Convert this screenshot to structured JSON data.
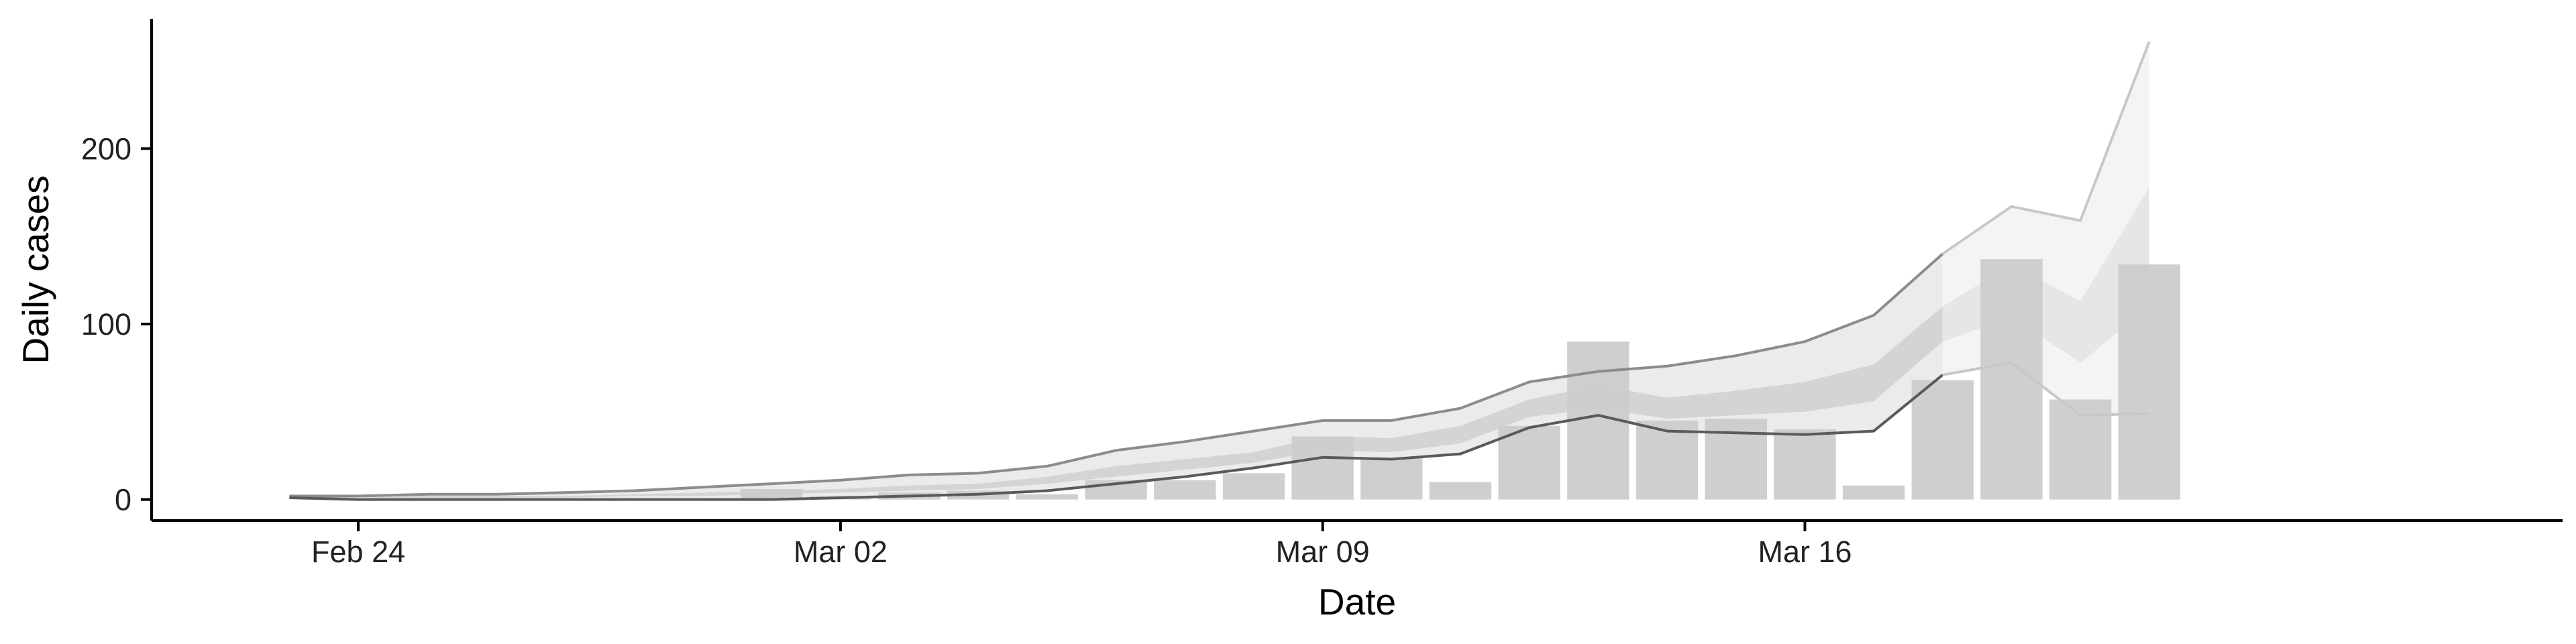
{
  "chart_data": {
    "type": "bar",
    "title": "",
    "xlabel": "Date",
    "ylabel": "Daily cases",
    "x_ticks": [
      "Feb 24",
      "Mar 02",
      "Mar 09",
      "Mar 16"
    ],
    "x_tick_dates": [
      "2020-02-24",
      "2020-03-02",
      "2020-03-09",
      "2020-03-16"
    ],
    "y_ticks": [
      0,
      100,
      200
    ],
    "xlim": [
      "2020-02-21",
      "2020-03-27"
    ],
    "ylim": [
      -12,
      274
    ],
    "grid": false,
    "legend": "none",
    "colors": {
      "bars": "#cccccc",
      "band_outer_fit": "#ebebeb",
      "band_inner_fit": "#d4d4d4",
      "band_outer_forecast": "#f4f4f4",
      "band_inner_forecast": "#e6e6e6",
      "upper_line": "#8c8c8c",
      "lower_line": "#5a5a5a",
      "upper_line_forecast": "#c8c8c8"
    },
    "cases": {
      "dates": [
        "2020-03-01",
        "2020-03-02",
        "2020-03-03",
        "2020-03-04",
        "2020-03-05",
        "2020-03-06",
        "2020-03-07",
        "2020-03-08",
        "2020-03-09",
        "2020-03-10",
        "2020-03-11",
        "2020-03-12",
        "2020-03-13",
        "2020-03-14",
        "2020-03-15",
        "2020-03-16",
        "2020-03-17",
        "2020-03-18",
        "2020-03-19",
        "2020-03-20",
        "2020-03-21"
      ],
      "values": [
        6,
        2,
        4,
        5,
        3,
        11,
        11,
        15,
        36,
        24,
        10,
        42,
        90,
        45,
        46,
        40,
        8,
        68,
        137,
        57,
        134
      ]
    },
    "ribbon_dates": [
      "2020-02-23",
      "2020-02-24",
      "2020-02-25",
      "2020-02-26",
      "2020-02-27",
      "2020-02-28",
      "2020-02-29",
      "2020-03-01",
      "2020-03-02",
      "2020-03-03",
      "2020-03-04",
      "2020-03-05",
      "2020-03-06",
      "2020-03-07",
      "2020-03-08",
      "2020-03-09",
      "2020-03-10",
      "2020-03-11",
      "2020-03-12",
      "2020-03-13",
      "2020-03-14",
      "2020-03-15",
      "2020-03-16",
      "2020-03-17",
      "2020-03-18",
      "2020-03-19",
      "2020-03-20",
      "2020-03-21"
    ],
    "outer_upper": [
      2,
      2,
      3,
      3,
      4,
      5,
      7,
      9,
      11,
      14,
      15,
      19,
      28,
      33,
      39,
      45,
      45,
      52,
      67,
      73,
      76,
      82,
      90,
      105,
      140,
      167,
      159,
      261
    ],
    "outer_lower": [
      1,
      0,
      0,
      0,
      0,
      0,
      0,
      0,
      1,
      2,
      3,
      5,
      9,
      13,
      18,
      24,
      23,
      26,
      41,
      48,
      39,
      38,
      37,
      39,
      71,
      78,
      48,
      49
    ],
    "inner_upper": [
      2,
      1,
      2,
      2,
      2,
      3,
      4,
      5,
      6,
      8,
      9,
      13,
      19,
      23,
      27,
      36,
      35,
      42,
      57,
      65,
      58,
      62,
      67,
      77,
      110,
      134,
      113,
      178
    ],
    "inner_lower": [
      1,
      1,
      1,
      1,
      1,
      2,
      2,
      3,
      4,
      5,
      6,
      9,
      13,
      17,
      21,
      28,
      27,
      32,
      47,
      52,
      46,
      48,
      50,
      56,
      90,
      104,
      78,
      110
    ],
    "forecast_from": "2020-03-18"
  }
}
